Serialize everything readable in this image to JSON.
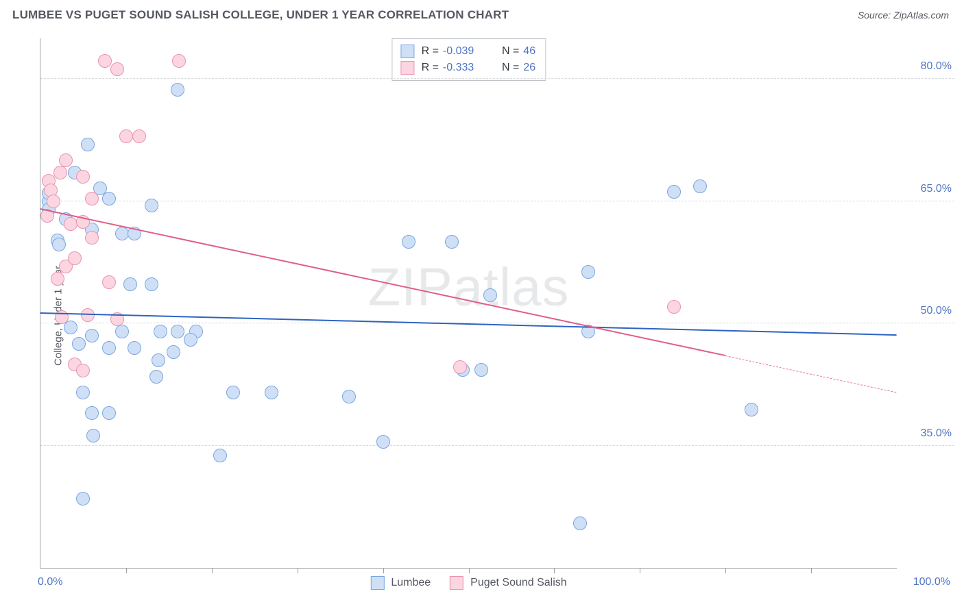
{
  "header": {
    "title": "LUMBEE VS PUGET SOUND SALISH COLLEGE, UNDER 1 YEAR CORRELATION CHART",
    "source": "Source: ZipAtlas.com"
  },
  "watermark": "ZIPatlas",
  "chart": {
    "type": "scatter",
    "y_axis_title": "College, Under 1 year",
    "xlim": [
      0,
      100
    ],
    "ylim": [
      20,
      85
    ],
    "x_ticks_minor": [
      10,
      20,
      30,
      40,
      50,
      60,
      70,
      80,
      90
    ],
    "x_labels": [
      {
        "v": 0,
        "t": "0.0%"
      },
      {
        "v": 100,
        "t": "100.0%"
      }
    ],
    "y_gridlines": [
      {
        "v": 35,
        "t": "35.0%"
      },
      {
        "v": 50,
        "t": "50.0%"
      },
      {
        "v": 65,
        "t": "65.0%"
      },
      {
        "v": 80,
        "t": "80.0%"
      }
    ],
    "tick_label_color": "#4f74c4",
    "point_radius": 10,
    "series": [
      {
        "id": "lumbee",
        "label": "Lumbee",
        "fill": "#cfe0f6",
        "stroke": "#7aa6de",
        "line_color": "#2f63c0",
        "R": "-0.039",
        "N": "46",
        "trend": {
          "x1": 0,
          "y1": 51.2,
          "x2": 100,
          "y2": 48.5,
          "dash_from_x": null
        },
        "points": [
          [
            1,
            65
          ],
          [
            1,
            66
          ],
          [
            1,
            64
          ],
          [
            2,
            60.2
          ],
          [
            2.2,
            59.7
          ],
          [
            3,
            62.8
          ],
          [
            4,
            68.5
          ],
          [
            5.5,
            72
          ],
          [
            7,
            66.6
          ],
          [
            8,
            65.3
          ],
          [
            6,
            61.5
          ],
          [
            9.5,
            61
          ],
          [
            11,
            61
          ],
          [
            13,
            64.5
          ],
          [
            16,
            78.7
          ],
          [
            3.5,
            49.5
          ],
          [
            4.5,
            47.5
          ],
          [
            6,
            48.5
          ],
          [
            8,
            47
          ],
          [
            9.5,
            49
          ],
          [
            10.5,
            54.8
          ],
          [
            13,
            54.8
          ],
          [
            14,
            49
          ],
          [
            16,
            49
          ],
          [
            18.2,
            49
          ],
          [
            11,
            47
          ],
          [
            13.8,
            45.5
          ],
          [
            15.5,
            46.5
          ],
          [
            17.5,
            48
          ],
          [
            5,
            41.5
          ],
          [
            6,
            39
          ],
          [
            6.2,
            36.2
          ],
          [
            5,
            28.5
          ],
          [
            8,
            39
          ],
          [
            13.5,
            43.5
          ],
          [
            21,
            33.8
          ],
          [
            22.5,
            41.5
          ],
          [
            27,
            41.5
          ],
          [
            36,
            41
          ],
          [
            40,
            35.5
          ],
          [
            43,
            60
          ],
          [
            48,
            60
          ],
          [
            52.5,
            53.5
          ],
          [
            49.3,
            44.3
          ],
          [
            51.5,
            44.3
          ],
          [
            64,
            49
          ],
          [
            64,
            56.3
          ],
          [
            63,
            25.5
          ],
          [
            74,
            66.2
          ],
          [
            77,
            66.8
          ],
          [
            83,
            39.4
          ]
        ]
      },
      {
        "id": "salish",
        "label": "Puget Sound Salish",
        "fill": "#fbd6e1",
        "stroke": "#ea92b0",
        "line_color": "#e05e8a",
        "R": "-0.333",
        "N": "26",
        "trend": {
          "x1": 0,
          "y1": 64.0,
          "x2": 100,
          "y2": 41.5,
          "dash_from_x": 80
        },
        "points": [
          [
            1,
            67.5
          ],
          [
            1.2,
            66.3
          ],
          [
            1.5,
            65
          ],
          [
            0.8,
            63.2
          ],
          [
            2.3,
            68.5
          ],
          [
            3,
            70
          ],
          [
            5,
            68
          ],
          [
            6,
            65.3
          ],
          [
            3.5,
            62.2
          ],
          [
            5,
            62.5
          ],
          [
            6,
            60.5
          ],
          [
            7.5,
            82.2
          ],
          [
            9,
            81.2
          ],
          [
            10,
            73
          ],
          [
            11.5,
            73
          ],
          [
            16.2,
            82.2
          ],
          [
            2,
            55.5
          ],
          [
            3,
            57
          ],
          [
            4,
            58
          ],
          [
            2.5,
            50.8
          ],
          [
            5.5,
            51
          ],
          [
            4,
            45
          ],
          [
            5,
            44.2
          ],
          [
            8,
            55.1
          ],
          [
            9,
            50.5
          ],
          [
            49,
            44.6
          ],
          [
            74,
            52
          ]
        ]
      }
    ],
    "legend_top_labels": {
      "R": "R =",
      "N": "N ="
    },
    "legend_bottom": [
      {
        "series": "lumbee"
      },
      {
        "series": "salish"
      }
    ]
  }
}
